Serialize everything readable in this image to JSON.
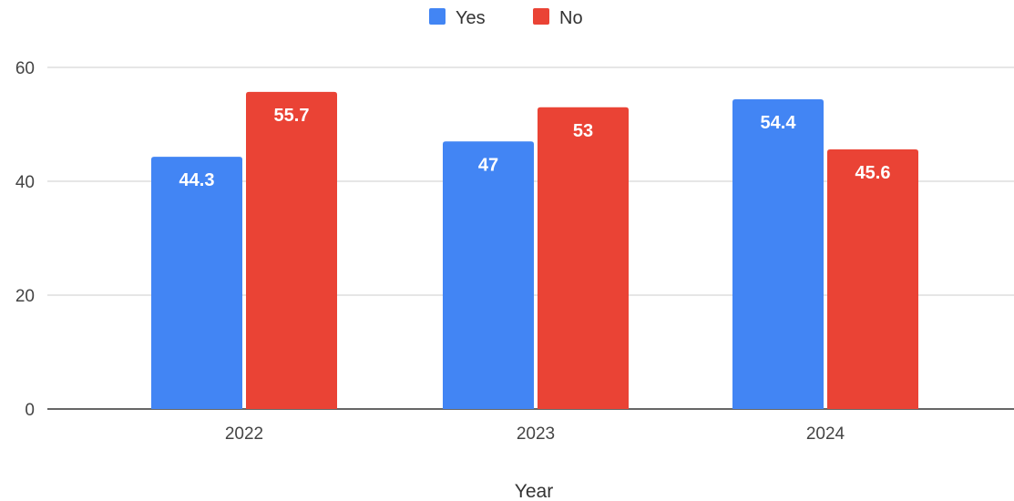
{
  "chart_data": {
    "type": "bar",
    "categories": [
      "2022",
      "2023",
      "2024"
    ],
    "series": [
      {
        "name": "Yes",
        "values": [
          44.3,
          47,
          54.4
        ],
        "color": "#4285f4"
      },
      {
        "name": "No",
        "values": [
          55.7,
          53,
          45.6
        ],
        "color": "#ea4335"
      }
    ],
    "xlabel": "Year",
    "ylabel": "",
    "ylim": [
      0,
      60
    ],
    "yticks": [
      0,
      20,
      40,
      60
    ],
    "data_labels": {
      "Yes": [
        "44.3",
        "47",
        "54.4"
      ],
      "No": [
        "55.7",
        "53",
        "45.6"
      ]
    },
    "grid": true,
    "legend_position": "top-center",
    "gridline_color": "#cccccc",
    "baseline_color": "#333333",
    "data_label_color": "#ffffff"
  }
}
